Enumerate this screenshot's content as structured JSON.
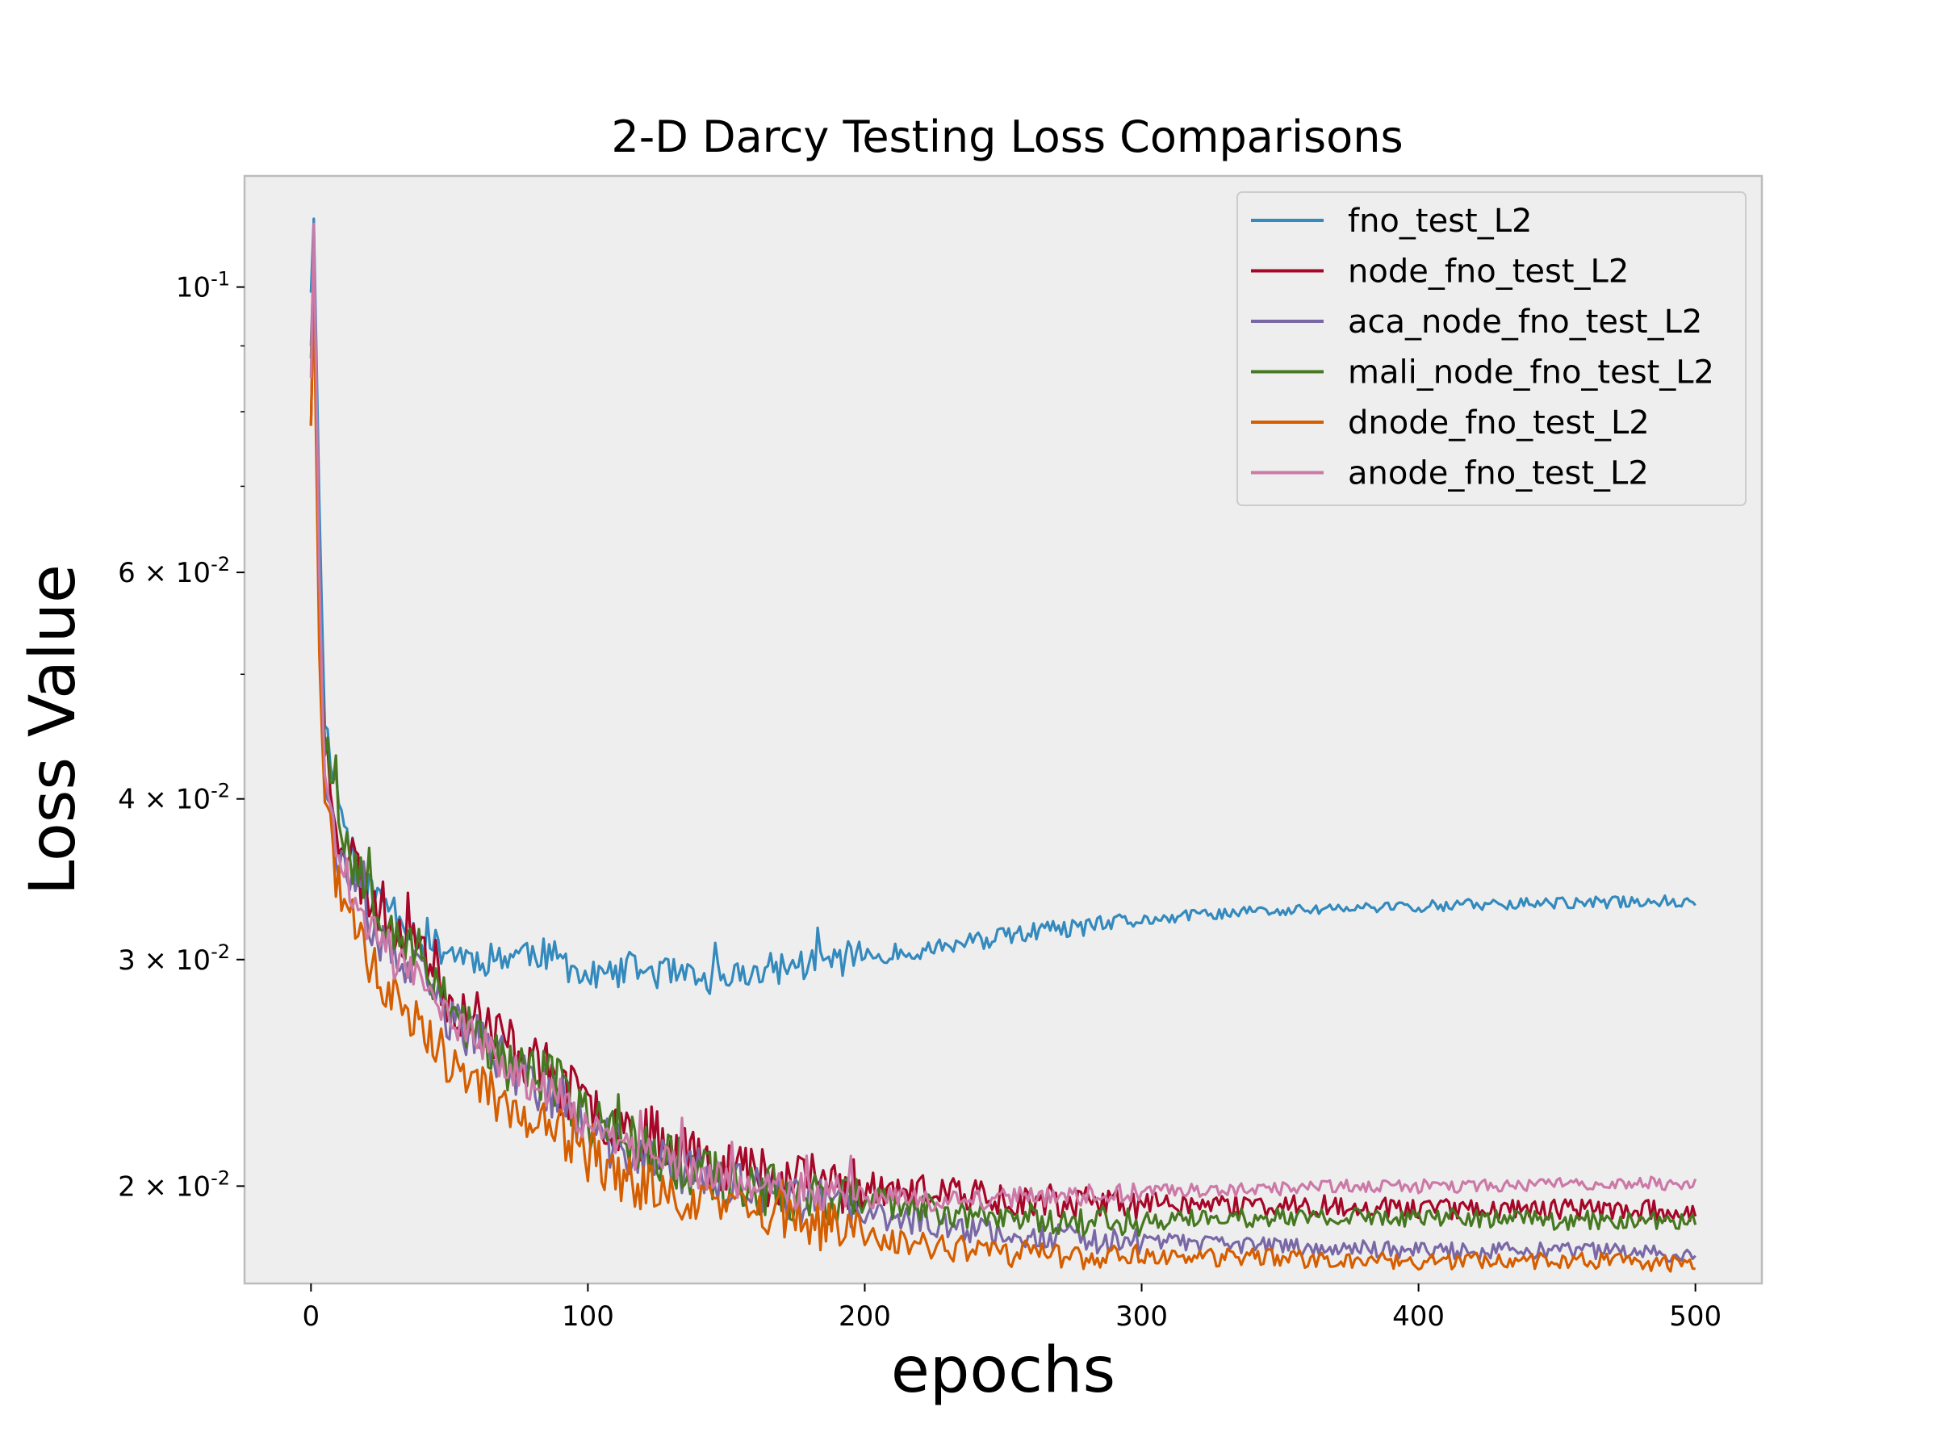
{
  "chart_data": {
    "type": "line",
    "title": "2-D Darcy Testing Loss Comparisons",
    "xlabel": "epochs",
    "ylabel": "Loss Value",
    "xlim": [
      -24,
      524
    ],
    "ylim": [
      0.0168,
      0.122
    ],
    "yscale": "log",
    "xticks": [
      0,
      100,
      200,
      300,
      400,
      500
    ],
    "yticks": [
      {
        "value": 0.1,
        "base": "10",
        "exp": "-1",
        "coef": ""
      },
      {
        "value": 0.06,
        "base": "10",
        "exp": "-2",
        "coef": "6 × "
      },
      {
        "value": 0.04,
        "base": "10",
        "exp": "-2",
        "coef": "4 × "
      },
      {
        "value": 0.03,
        "base": "10",
        "exp": "-2",
        "coef": "3 × "
      },
      {
        "value": 0.02,
        "base": "10",
        "exp": "-2",
        "coef": "2 × "
      }
    ],
    "minor_yticks": [
      0.09,
      0.08,
      0.07,
      0.05
    ],
    "grid": false,
    "legend_position": "top-right",
    "background": "#eeeeee",
    "series": [
      {
        "name": "fno_test_L2",
        "color": "#348abd",
        "points": [
          [
            0,
            0.099
          ],
          [
            1,
            0.113
          ],
          [
            3,
            0.068
          ],
          [
            5,
            0.046
          ],
          [
            10,
            0.04
          ],
          [
            15,
            0.036
          ],
          [
            20,
            0.034
          ],
          [
            30,
            0.033
          ],
          [
            40,
            0.031
          ],
          [
            50,
            0.0305
          ],
          [
            60,
            0.03
          ],
          [
            70,
            0.0302
          ],
          [
            80,
            0.0305
          ],
          [
            90,
            0.03
          ],
          [
            100,
            0.029
          ],
          [
            110,
            0.0292
          ],
          [
            120,
            0.0295
          ],
          [
            130,
            0.0292
          ],
          [
            140,
            0.0288
          ],
          [
            150,
            0.029
          ],
          [
            160,
            0.0293
          ],
          [
            170,
            0.0296
          ],
          [
            180,
            0.0298
          ],
          [
            200,
            0.0302
          ],
          [
            220,
            0.0305
          ],
          [
            240,
            0.031
          ],
          [
            260,
            0.0315
          ],
          [
            280,
            0.0318
          ],
          [
            300,
            0.0322
          ],
          [
            320,
            0.0325
          ],
          [
            340,
            0.0327
          ],
          [
            360,
            0.0328
          ],
          [
            380,
            0.0329
          ],
          [
            400,
            0.033
          ],
          [
            420,
            0.0331
          ],
          [
            440,
            0.0332
          ],
          [
            460,
            0.0332
          ],
          [
            480,
            0.0333
          ],
          [
            500,
            0.0333
          ]
        ],
        "noise": 0.03,
        "seed": 11
      },
      {
        "name": "node_fno_test_L2",
        "color": "#a60628",
        "points": [
          [
            0,
            0.078
          ],
          [
            1,
            0.1
          ],
          [
            3,
            0.058
          ],
          [
            5,
            0.044
          ],
          [
            10,
            0.038
          ],
          [
            15,
            0.036
          ],
          [
            20,
            0.034
          ],
          [
            30,
            0.032
          ],
          [
            40,
            0.031
          ],
          [
            50,
            0.028
          ],
          [
            60,
            0.027
          ],
          [
            70,
            0.026
          ],
          [
            80,
            0.025
          ],
          [
            90,
            0.024
          ],
          [
            100,
            0.023
          ],
          [
            120,
            0.022
          ],
          [
            140,
            0.0212
          ],
          [
            160,
            0.0205
          ],
          [
            180,
            0.0202
          ],
          [
            200,
            0.02
          ],
          [
            220,
            0.0198
          ],
          [
            240,
            0.0197
          ],
          [
            260,
            0.0195
          ],
          [
            280,
            0.0194
          ],
          [
            300,
            0.0194
          ],
          [
            340,
            0.0193
          ],
          [
            380,
            0.0193
          ],
          [
            420,
            0.0192
          ],
          [
            460,
            0.0192
          ],
          [
            500,
            0.0191
          ]
        ],
        "noise": 0.055,
        "seed": 23
      },
      {
        "name": "aca_node_fno_test_L2",
        "color": "#7a68a6",
        "points": [
          [
            0,
            0.09
          ],
          [
            1,
            0.105
          ],
          [
            3,
            0.055
          ],
          [
            5,
            0.042
          ],
          [
            10,
            0.036
          ],
          [
            15,
            0.034
          ],
          [
            20,
            0.032
          ],
          [
            30,
            0.03
          ],
          [
            40,
            0.029
          ],
          [
            50,
            0.027
          ],
          [
            60,
            0.026
          ],
          [
            70,
            0.025
          ],
          [
            80,
            0.024
          ],
          [
            90,
            0.0235
          ],
          [
            100,
            0.022
          ],
          [
            120,
            0.021
          ],
          [
            140,
            0.0205
          ],
          [
            160,
            0.0198
          ],
          [
            180,
            0.0195
          ],
          [
            200,
            0.019
          ],
          [
            220,
            0.0188
          ],
          [
            240,
            0.0185
          ],
          [
            260,
            0.0183
          ],
          [
            280,
            0.0182
          ],
          [
            300,
            0.0181
          ],
          [
            340,
            0.018
          ],
          [
            380,
            0.0179
          ],
          [
            420,
            0.0178
          ],
          [
            460,
            0.0178
          ],
          [
            500,
            0.0177
          ]
        ],
        "noise": 0.045,
        "seed": 37
      },
      {
        "name": "mali_node_fno_test_L2",
        "color": "#467821",
        "points": [
          [
            0,
            0.088
          ],
          [
            1,
            0.104
          ],
          [
            3,
            0.056
          ],
          [
            5,
            0.045
          ],
          [
            10,
            0.039
          ],
          [
            15,
            0.036
          ],
          [
            20,
            0.034
          ],
          [
            30,
            0.032
          ],
          [
            40,
            0.03
          ],
          [
            50,
            0.028
          ],
          [
            60,
            0.026
          ],
          [
            70,
            0.025
          ],
          [
            80,
            0.0245
          ],
          [
            90,
            0.024
          ],
          [
            100,
            0.0225
          ],
          [
            120,
            0.0215
          ],
          [
            140,
            0.0205
          ],
          [
            160,
            0.02
          ],
          [
            180,
            0.0197
          ],
          [
            200,
            0.0195
          ],
          [
            220,
            0.0192
          ],
          [
            240,
            0.019
          ],
          [
            260,
            0.0189
          ],
          [
            280,
            0.0188
          ],
          [
            300,
            0.0188
          ],
          [
            340,
            0.0189
          ],
          [
            380,
            0.0189
          ],
          [
            420,
            0.0189
          ],
          [
            460,
            0.0188
          ],
          [
            500,
            0.0188
          ]
        ],
        "noise": 0.05,
        "seed": 53
      },
      {
        "name": "dnode_fno_test_L2",
        "color": "#d55e00",
        "points": [
          [
            0,
            0.078
          ],
          [
            1,
            0.1
          ],
          [
            3,
            0.052
          ],
          [
            5,
            0.04
          ],
          [
            10,
            0.034
          ],
          [
            15,
            0.032
          ],
          [
            20,
            0.03
          ],
          [
            30,
            0.028
          ],
          [
            40,
            0.027
          ],
          [
            50,
            0.025
          ],
          [
            60,
            0.024
          ],
          [
            70,
            0.023
          ],
          [
            80,
            0.0225
          ],
          [
            90,
            0.022
          ],
          [
            100,
            0.021
          ],
          [
            120,
            0.02
          ],
          [
            140,
            0.0195
          ],
          [
            160,
            0.019
          ],
          [
            180,
            0.0187
          ],
          [
            200,
            0.0183
          ],
          [
            220,
            0.018
          ],
          [
            240,
            0.0178
          ],
          [
            260,
            0.0177
          ],
          [
            280,
            0.0176
          ],
          [
            300,
            0.0176
          ],
          [
            340,
            0.0176
          ],
          [
            380,
            0.0175
          ],
          [
            420,
            0.0175
          ],
          [
            460,
            0.0175
          ],
          [
            500,
            0.0174
          ]
        ],
        "noise": 0.045,
        "seed": 71
      },
      {
        "name": "anode_fno_test_L2",
        "color": "#cc79a7",
        "points": [
          [
            0,
            0.085
          ],
          [
            1,
            0.112
          ],
          [
            3,
            0.06
          ],
          [
            5,
            0.041
          ],
          [
            10,
            0.036
          ],
          [
            15,
            0.034
          ],
          [
            20,
            0.032
          ],
          [
            30,
            0.03
          ],
          [
            40,
            0.029
          ],
          [
            50,
            0.027
          ],
          [
            60,
            0.026
          ],
          [
            70,
            0.025
          ],
          [
            80,
            0.024
          ],
          [
            90,
            0.0235
          ],
          [
            100,
            0.022
          ],
          [
            120,
            0.0212
          ],
          [
            140,
            0.0205
          ],
          [
            160,
            0.02
          ],
          [
            180,
            0.0198
          ],
          [
            200,
            0.0196
          ],
          [
            220,
            0.0195
          ],
          [
            240,
            0.0195
          ],
          [
            260,
            0.0196
          ],
          [
            280,
            0.0197
          ],
          [
            300,
            0.0198
          ],
          [
            340,
            0.0199
          ],
          [
            380,
            0.02
          ],
          [
            420,
            0.02
          ],
          [
            460,
            0.0201
          ],
          [
            500,
            0.0201
          ]
        ],
        "noise": 0.035,
        "seed": 89
      }
    ]
  }
}
